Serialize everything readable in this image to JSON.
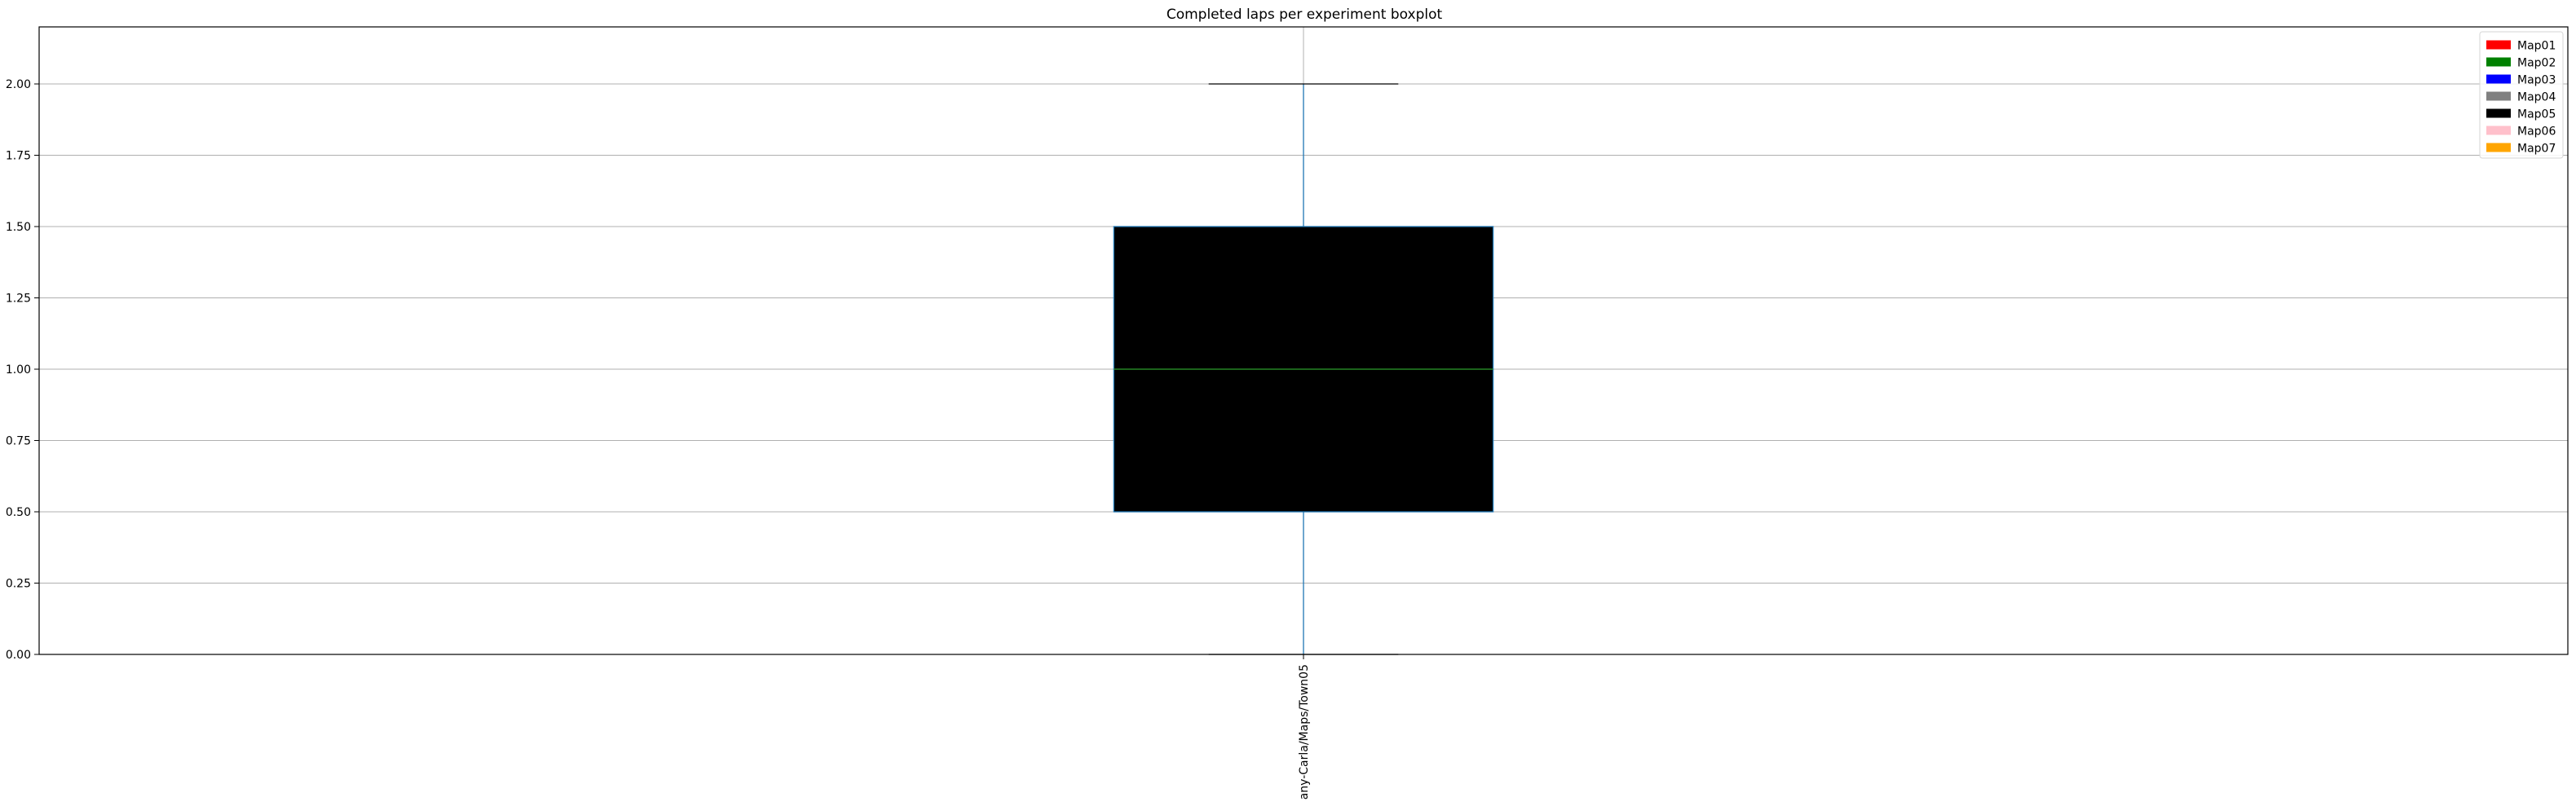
{
  "chart_data": {
    "type": "boxplot",
    "title": "Completed laps per experiment boxplot",
    "xlabel": "",
    "ylabel": "",
    "categories": [
      "any-Carla/Maps/Town05"
    ],
    "boxes": [
      {
        "category": "any-Carla/Maps/Town05",
        "whisker_low": 0.0,
        "q1": 0.5,
        "median": 1.0,
        "q3": 1.5,
        "whisker_high": 2.0,
        "fill": "#000000",
        "edge_color": "#1f77b4",
        "median_color": "#2ca02c"
      }
    ],
    "ylim": [
      0,
      2.2
    ],
    "yticks": [
      0.0,
      0.25,
      0.5,
      0.75,
      1.0,
      1.25,
      1.5,
      1.75,
      2.0
    ],
    "ytick_labels": [
      "0.00",
      "0.25",
      "0.50",
      "0.75",
      "1.00",
      "1.25",
      "1.50",
      "1.75",
      "2.00"
    ],
    "grid": true,
    "legend_position": "top-right",
    "legend": [
      {
        "label": "Map01",
        "color": "#ff0000"
      },
      {
        "label": "Map02",
        "color": "#008000"
      },
      {
        "label": "Map03",
        "color": "#0000ff"
      },
      {
        "label": "Map04",
        "color": "#808080"
      },
      {
        "label": "Map05",
        "color": "#000000"
      },
      {
        "label": "Map06",
        "color": "#ffc0cb"
      },
      {
        "label": "Map07",
        "color": "#ffa500"
      }
    ]
  }
}
